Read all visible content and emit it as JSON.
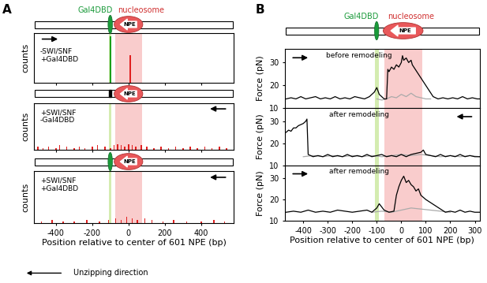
{
  "chart_data": [
    {
      "type": "bar",
      "ylabel": "counts",
      "xlim": [
        -520,
        580
      ],
      "xticks": [
        -400,
        -200,
        0,
        200,
        400
      ],
      "ylim": [
        0,
        32
      ],
      "yticks": [],
      "tick_labels": false,
      "bands": [
        {
          "range": [
            -108,
            -93
          ],
          "color": "#d4ecb0"
        },
        {
          "range": [
            -75,
            75
          ],
          "color": "#f9cccc"
        }
      ],
      "series": [
        {
          "color": "#1aa01a",
          "x": [
            -100
          ],
          "values": [
            30
          ]
        },
        {
          "color": "#e02020",
          "x": [
            10
          ],
          "values": [
            18
          ]
        }
      ],
      "texts": {
        "panel": "A",
        "header": [
          "Gal4DBD",
          "nucleosome"
        ],
        "npe": "NPE",
        "condition": "-SWI/SNF\n+Gal4DBD"
      }
    },
    {
      "type": "bar",
      "ylabel": "counts",
      "xlim": [
        -520,
        580
      ],
      "xticks": [
        -400,
        -200,
        0,
        200,
        400
      ],
      "ylim": [
        0,
        32
      ],
      "yticks": [],
      "tick_labels": false,
      "bands": [
        {
          "range": [
            -108,
            -93
          ],
          "color": "#d4ecb0"
        },
        {
          "range": [
            -75,
            75
          ],
          "color": "#f9cccc"
        }
      ],
      "series": [
        {
          "color": "#e02020",
          "x": [
            -500,
            -470,
            -440,
            -400,
            -380,
            -340,
            -300,
            -270,
            -240,
            -200,
            -170,
            -130,
            -100,
            -80,
            -60,
            -40,
            -20,
            0,
            20,
            40,
            70,
            100,
            140,
            180,
            220,
            260,
            300,
            340,
            380,
            420,
            460,
            500,
            540
          ],
          "values": [
            2,
            1,
            2,
            1,
            3,
            2,
            1,
            2,
            1,
            2,
            3,
            2,
            1,
            3,
            4,
            3,
            2,
            4,
            3,
            2,
            3,
            2,
            1,
            2,
            1,
            2,
            1,
            2,
            1,
            2,
            1,
            2,
            1
          ]
        }
      ],
      "texts": {
        "npe": "NPE",
        "condition": "+SWI/SNF\n-Gal4DBD"
      }
    },
    {
      "type": "bar",
      "ylabel": "counts",
      "xlabel": "Position relative to center of 601 NPE (bp)",
      "xlim": [
        -520,
        580
      ],
      "xticks": [
        -400,
        -200,
        0,
        200,
        400
      ],
      "ylim": [
        0,
        32
      ],
      "yticks": [],
      "tick_labels": "x",
      "bands": [
        {
          "range": [
            -108,
            -93
          ],
          "color": "#d4ecb0"
        },
        {
          "range": [
            -75,
            75
          ],
          "color": "#f9cccc"
        }
      ],
      "series": [
        {
          "color": "#e02020",
          "x": [
            -480,
            -420,
            -360,
            -300,
            -230,
            -160,
            -110,
            -70,
            -40,
            -10,
            20,
            50,
            90,
            130,
            190,
            250,
            320,
            400,
            470,
            530
          ],
          "values": [
            1,
            2,
            1,
            1,
            2,
            1,
            2,
            3,
            2,
            4,
            3,
            2,
            3,
            2,
            1,
            2,
            1,
            1,
            2,
            1
          ]
        }
      ],
      "texts": {
        "npe": "NPE",
        "condition": "+SWI/SNF\n+Gal4DBD",
        "footer": "Unzipping direction"
      }
    },
    {
      "type": "line",
      "ylabel": "Force (pN)",
      "xlim": [
        -475,
        320
      ],
      "xticks": [
        -400,
        -300,
        -200,
        -100,
        0,
        100,
        200,
        300
      ],
      "ylim": [
        10,
        36
      ],
      "yticks": [
        10,
        20,
        30
      ],
      "tick_labels": "y",
      "bands": [
        {
          "range": [
            -108,
            -93
          ],
          "color": "#d4ecb0"
        },
        {
          "range": [
            -70,
            85
          ],
          "color": "#f9cccc"
        }
      ],
      "series": [
        {
          "color": "#aaaaaa",
          "x": [
            -100,
            -80,
            -60,
            -40,
            -20,
            0,
            20,
            40,
            60,
            80,
            100,
            120
          ],
          "values": [
            14,
            13.5,
            14,
            15,
            14.5,
            16,
            15,
            16.5,
            15,
            14.5,
            14,
            14
          ]
        },
        {
          "color": "#000000",
          "x": [
            -470,
            -450,
            -430,
            -410,
            -390,
            -370,
            -350,
            -330,
            -310,
            -290,
            -270,
            -250,
            -230,
            -210,
            -190,
            -170,
            -150,
            -130,
            -110,
            -100,
            -90,
            -70,
            -60,
            -55,
            -50,
            -40,
            -30,
            -20,
            -10,
            0,
            5,
            10,
            20,
            30,
            40,
            45,
            130,
            150,
            170,
            190,
            210,
            230,
            250,
            270,
            290,
            310,
            320
          ],
          "values": [
            14,
            14.5,
            14,
            15,
            14,
            14.5,
            15,
            14,
            14.5,
            14,
            15,
            14,
            14.5,
            14,
            15,
            14.5,
            14,
            15,
            17,
            19,
            16,
            14,
            14,
            27,
            26,
            28,
            27,
            29,
            28,
            30,
            33,
            31,
            32,
            30,
            31,
            29,
            15,
            14,
            14.5,
            14,
            14.5,
            14,
            15,
            14,
            14.5,
            14,
            14
          ]
        }
      ],
      "texts": {
        "panel": "B",
        "header": [
          "Gal4DBD",
          "nucleosome"
        ],
        "npe": "NPE",
        "condition": "before remodeling"
      }
    },
    {
      "type": "line",
      "ylabel": "Force (pN)",
      "xlim": [
        -475,
        320
      ],
      "xticks": [
        -400,
        -300,
        -200,
        -100,
        0,
        100,
        200,
        300
      ],
      "ylim": [
        10,
        36
      ],
      "yticks": [
        10,
        20,
        30
      ],
      "tick_labels": "y",
      "bands": [
        {
          "range": [
            -108,
            -93
          ],
          "color": "#d4ecb0"
        },
        {
          "range": [
            -70,
            85
          ],
          "color": "#f9cccc"
        }
      ],
      "series": [
        {
          "color": "#aaaaaa",
          "x": [
            -400,
            -360,
            -320,
            -280,
            -240,
            -200,
            -160,
            -120,
            -80,
            -40,
            0,
            40,
            80,
            120,
            160,
            200,
            240,
            280,
            320
          ],
          "values": [
            14,
            14.5,
            14,
            14.5,
            14,
            14.5,
            14,
            14.5,
            14,
            14.5,
            15,
            14.5,
            15,
            14.5,
            14,
            14.5,
            14,
            14.5,
            14
          ]
        },
        {
          "color": "#000000",
          "x": [
            -470,
            -460,
            -450,
            -440,
            -430,
            -420,
            -410,
            -400,
            -390,
            -385,
            -380,
            -360,
            -340,
            -320,
            -300,
            -280,
            -260,
            -240,
            -220,
            -200,
            -180,
            -160,
            -140,
            -120,
            -100,
            -80,
            -60,
            -40,
            -20,
            0,
            20,
            40,
            60,
            80,
            90,
            100,
            120,
            140,
            160,
            180,
            200,
            220,
            240,
            260,
            280,
            300,
            320
          ],
          "values": [
            25,
            26,
            25.5,
            27,
            27,
            28,
            28.5,
            29,
            30,
            31,
            15,
            14,
            14.5,
            14,
            15,
            14,
            14.5,
            14,
            15,
            14,
            14.5,
            14,
            15,
            14,
            14.5,
            15,
            14,
            14.5,
            14,
            15,
            14,
            15,
            15.5,
            16,
            17,
            15,
            14.5,
            14,
            15,
            14,
            14.5,
            14,
            15,
            14,
            14.5,
            14,
            14
          ]
        }
      ],
      "texts": {
        "condition": "after remodeling"
      }
    },
    {
      "type": "line",
      "ylabel": "Force (pN)",
      "xlabel": "Position relative to center of 601 NPE (bp)",
      "xlim": [
        -475,
        320
      ],
      "xticks": [
        -400,
        -300,
        -200,
        -100,
        0,
        100,
        200,
        300
      ],
      "ylim": [
        10,
        36
      ],
      "yticks": [
        10,
        20,
        30
      ],
      "bands": [
        {
          "range": [
            -108,
            -93
          ],
          "color": "#d4ecb0"
        },
        {
          "range": [
            -70,
            85
          ],
          "color": "#f9cccc"
        }
      ],
      "series": [
        {
          "color": "#aaaaaa",
          "x": [
            -120,
            -80,
            -40,
            0,
            40,
            80,
            120,
            160,
            200
          ],
          "values": [
            14,
            14.5,
            14,
            15,
            16,
            15.5,
            15,
            14.5,
            14
          ]
        },
        {
          "color": "#000000",
          "x": [
            -470,
            -440,
            -410,
            -380,
            -350,
            -320,
            -290,
            -260,
            -230,
            -200,
            -170,
            -140,
            -120,
            -100,
            -90,
            -70,
            -50,
            -30,
            -20,
            -10,
            0,
            10,
            20,
            30,
            40,
            50,
            60,
            70,
            80,
            90,
            100,
            180,
            200,
            220,
            240,
            260,
            280,
            300,
            320
          ],
          "values": [
            14,
            14.5,
            14,
            15,
            14,
            14.5,
            14,
            15,
            14.5,
            14,
            14.5,
            15,
            14,
            16,
            18,
            15,
            14,
            14.5,
            22,
            26,
            29,
            31,
            28,
            29,
            27,
            26,
            24,
            25,
            22,
            21,
            20,
            14,
            14.5,
            14,
            15,
            14,
            14.5,
            14,
            14
          ]
        }
      ],
      "texts": {
        "condition": "after remodeling"
      }
    }
  ]
}
